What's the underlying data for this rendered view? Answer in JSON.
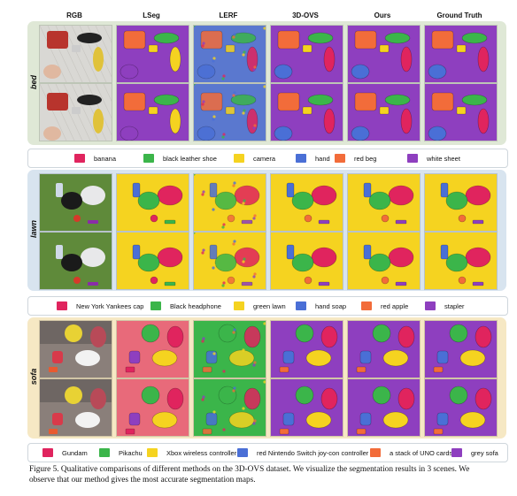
{
  "columns": [
    "RGB",
    "LSeg",
    "LERF",
    "3D-OVS",
    "Ours",
    "Ground Truth"
  ],
  "scenes": [
    {
      "name": "bed",
      "legend": [
        {
          "label": "banana",
          "color": "#e0245e"
        },
        {
          "label": "black leather shoe",
          "color": "#3bb54a"
        },
        {
          "label": "camera",
          "color": "#f5d320"
        },
        {
          "label": "hand",
          "color": "#4a6fd6"
        },
        {
          "label": "red beg",
          "color": "#f26c3a"
        },
        {
          "label": "white sheet",
          "color": "#8e3fbf"
        }
      ]
    },
    {
      "name": "lawn",
      "legend": [
        {
          "label": "New York Yankees cap",
          "color": "#e0245e"
        },
        {
          "label": "Black headphone",
          "color": "#3bb54a"
        },
        {
          "label": "green lawn",
          "color": "#f5d320"
        },
        {
          "label": "hand soap",
          "color": "#4a6fd6"
        },
        {
          "label": "red apple",
          "color": "#f26c3a"
        },
        {
          "label": "stapler",
          "color": "#8e3fbf"
        }
      ]
    },
    {
      "name": "sofa",
      "legend": [
        {
          "label": "Gundam",
          "color": "#e0245e"
        },
        {
          "label": "Pikachu",
          "color": "#3bb54a"
        },
        {
          "label": "Xbox wireless controller",
          "color": "#f5d320"
        },
        {
          "label": "red Nintendo Switch joy-con controller",
          "color": "#4a6fd6"
        },
        {
          "label": "a stack of UNO cards",
          "color": "#f26c3a"
        },
        {
          "label": "grey sofa",
          "color": "#8e3fbf"
        }
      ]
    }
  ],
  "caption": {
    "line1": "Figure 5. Qualitative comparisons of different methods on the 3D-OVS dataset. We visualize the segmentation results in 3 scenes. We",
    "line2": "observe that our method gives the most accurate segmentation maps."
  }
}
